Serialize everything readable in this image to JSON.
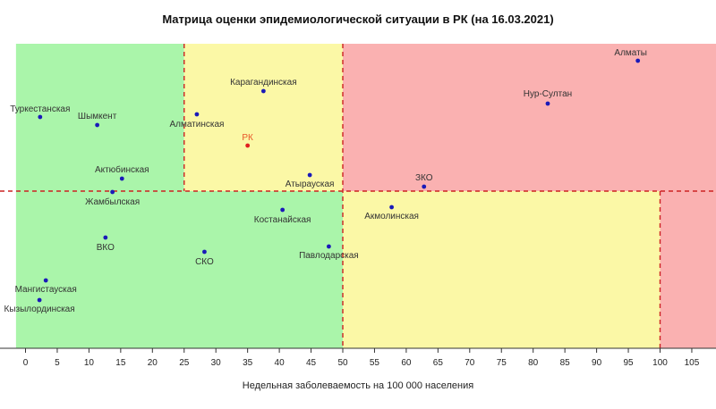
{
  "chart_data": {
    "type": "scatter",
    "title": "Матрица оценки эпидемиологической ситуации в РК (на 16.03.2021)",
    "xlabel": "Недельная заболеваемость на 100 000 населения",
    "xlim": [
      -1.5,
      109
    ],
    "x_ticks": [
      "0",
      "5",
      "10",
      "15",
      "20",
      "25",
      "30",
      "35",
      "40",
      "45",
      "50",
      "55",
      "60",
      "65",
      "70",
      "75",
      "80",
      "85",
      "90",
      "95",
      "100",
      "105"
    ],
    "zone_colors": {
      "green": "#aaf5aa",
      "yellow": "#fbf8a6",
      "red": "#fab1b1"
    },
    "zones": [
      {
        "color": "green",
        "x_from": -1.5,
        "x_to": 25,
        "half": "top"
      },
      {
        "color": "yellow",
        "x_from": 25,
        "x_to": 50,
        "half": "top"
      },
      {
        "color": "red",
        "x_from": 50,
        "x_to": 109,
        "half": "top"
      },
      {
        "color": "green",
        "x_from": -1.5,
        "x_to": 50,
        "half": "bottom"
      },
      {
        "color": "yellow",
        "x_from": 50,
        "x_to": 100,
        "half": "bottom"
      },
      {
        "color": "red",
        "x_from": 100,
        "x_to": 109,
        "half": "bottom"
      }
    ],
    "dashed_lines_x": [
      25,
      50,
      100
    ],
    "points": [
      {
        "name": "Алматы",
        "x": 96.5,
        "highlight": false
      },
      {
        "name": "Нур-Султан",
        "x": 82.3,
        "highlight": false
      },
      {
        "name": "Карагандинская",
        "x": 37.5,
        "highlight": false
      },
      {
        "name": "Алматинская",
        "x": 27.0,
        "highlight": false
      },
      {
        "name": "РК",
        "x": 35.0,
        "highlight": true
      },
      {
        "name": "Атырауская",
        "x": 44.8,
        "highlight": false
      },
      {
        "name": "ЗКО",
        "x": 62.8,
        "highlight": false
      },
      {
        "name": "Туркестанская",
        "x": 2.3,
        "highlight": false
      },
      {
        "name": "Шымкент",
        "x": 11.3,
        "highlight": false
      },
      {
        "name": "Актюбинская",
        "x": 15.2,
        "highlight": false
      },
      {
        "name": "Жамбылская",
        "x": 13.7,
        "highlight": false
      },
      {
        "name": "Костанайская",
        "x": 40.5,
        "highlight": false
      },
      {
        "name": "Акмолинская",
        "x": 57.7,
        "highlight": false
      },
      {
        "name": "ВКО",
        "x": 12.6,
        "highlight": false
      },
      {
        "name": "СКО",
        "x": 28.2,
        "highlight": false
      },
      {
        "name": "Павлодарская",
        "x": 47.8,
        "highlight": false
      },
      {
        "name": "Мангистауская",
        "x": 3.2,
        "highlight": false
      },
      {
        "name": "Кызылординская",
        "x": 2.2,
        "highlight": false
      }
    ]
  }
}
